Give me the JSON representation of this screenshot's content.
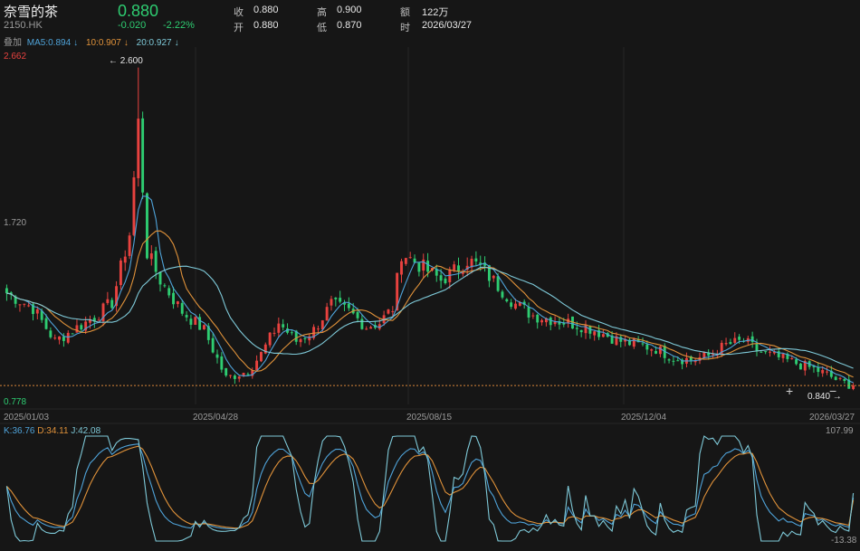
{
  "header": {
    "name": "奈雪的茶",
    "code": "2150.HK",
    "price": "0.880",
    "change": "-0.020",
    "change_pct": "-2.22%",
    "price_color": "#2ecc71"
  },
  "quote": [
    {
      "label": "收",
      "value": "0.880"
    },
    {
      "label": "开",
      "value": "0.880"
    },
    {
      "label": "高",
      "value": "0.900"
    },
    {
      "label": "低",
      "value": "0.870"
    },
    {
      "label": "额",
      "value": "122万"
    },
    {
      "label": "时",
      "value": "2026/03/27"
    }
  ],
  "overlay_label": "叠加",
  "ma_legend": [
    {
      "label": "MA5:0.894",
      "arrow": "↓",
      "color": "#4fa3d9"
    },
    {
      "label": "10:0.907",
      "arrow": "↓",
      "color": "#e0923a"
    },
    {
      "label": "20:0.927",
      "arrow": "↓",
      "color": "#7ec9d8"
    }
  ],
  "kdj_legend": [
    {
      "label": "K:36.76",
      "color": "#4fa3d9"
    },
    {
      "label": "D:34.11",
      "color": "#e0923a"
    },
    {
      "label": "J:42.08",
      "color": "#7ec9d8"
    }
  ],
  "colors": {
    "up": "#e8423f",
    "down": "#2ecc71",
    "ma5": "#4fa3d9",
    "ma10": "#e0923a",
    "ma20": "#7ec9d8",
    "grid": "#262626",
    "current_line": "#d9873a"
  },
  "chart_data": [
    {
      "type": "candlestick",
      "x_ticks": [
        "2025/01/03",
        "2025/04/28",
        "2025/08/15",
        "2025/12/04",
        "2026/03/27"
      ],
      "y_axis_labels": [
        "2.662",
        "1.720",
        "0.778"
      ],
      "ylim": [
        0.778,
        2.662
      ],
      "high_marker": {
        "label": "2.600",
        "value": 2.6,
        "date": "2025/03"
      },
      "low_marker": {
        "label": "0.840",
        "value": 0.84
      },
      "current_price": 0.88,
      "series": [
        {
          "name": "MA5",
          "last": 0.894
        },
        {
          "name": "10",
          "last": 0.907
        },
        {
          "name": "20",
          "last": 0.927
        }
      ],
      "close_path": [
        [
          0,
          1.38
        ],
        [
          6,
          1.3
        ],
        [
          11,
          1.12
        ],
        [
          15,
          1.18
        ],
        [
          20,
          1.25
        ],
        [
          24,
          1.33
        ],
        [
          28,
          1.7
        ],
        [
          30,
          2.3
        ],
        [
          32,
          1.6
        ],
        [
          35,
          1.45
        ],
        [
          40,
          1.28
        ],
        [
          45,
          1.18
        ],
        [
          50,
          0.92
        ],
        [
          55,
          0.96
        ],
        [
          58,
          1.05
        ],
        [
          62,
          1.22
        ],
        [
          66,
          1.12
        ],
        [
          70,
          1.18
        ],
        [
          74,
          1.32
        ],
        [
          78,
          1.28
        ],
        [
          82,
          1.2
        ],
        [
          85,
          1.22
        ],
        [
          88,
          1.3
        ],
        [
          90,
          1.6
        ],
        [
          93,
          1.55
        ],
        [
          96,
          1.5
        ],
        [
          99,
          1.45
        ],
        [
          102,
          1.5
        ],
        [
          105,
          1.56
        ],
        [
          108,
          1.52
        ],
        [
          112,
          1.42
        ],
        [
          116,
          1.32
        ],
        [
          120,
          1.26
        ],
        [
          124,
          1.24
        ],
        [
          128,
          1.22
        ],
        [
          132,
          1.2
        ],
        [
          136,
          1.16
        ],
        [
          140,
          1.12
        ],
        [
          144,
          1.1
        ],
        [
          148,
          1.08
        ],
        [
          152,
          1.03
        ],
        [
          156,
          1.02
        ],
        [
          160,
          1.04
        ],
        [
          164,
          1.1
        ],
        [
          168,
          1.12
        ],
        [
          172,
          1.06
        ],
        [
          176,
          1.03
        ],
        [
          180,
          1.0
        ],
        [
          184,
          0.97
        ],
        [
          187,
          0.94
        ],
        [
          190,
          0.9
        ],
        [
          193,
          0.88
        ]
      ]
    },
    {
      "type": "line",
      "title": "KDJ",
      "y_axis_labels": [
        "107.99",
        "-13.38"
      ],
      "ylim": [
        -13.38,
        107.99
      ],
      "series": [
        {
          "name": "K",
          "last": 36.76
        },
        {
          "name": "D",
          "last": 34.11
        },
        {
          "name": "J",
          "last": 42.08
        }
      ]
    }
  ]
}
